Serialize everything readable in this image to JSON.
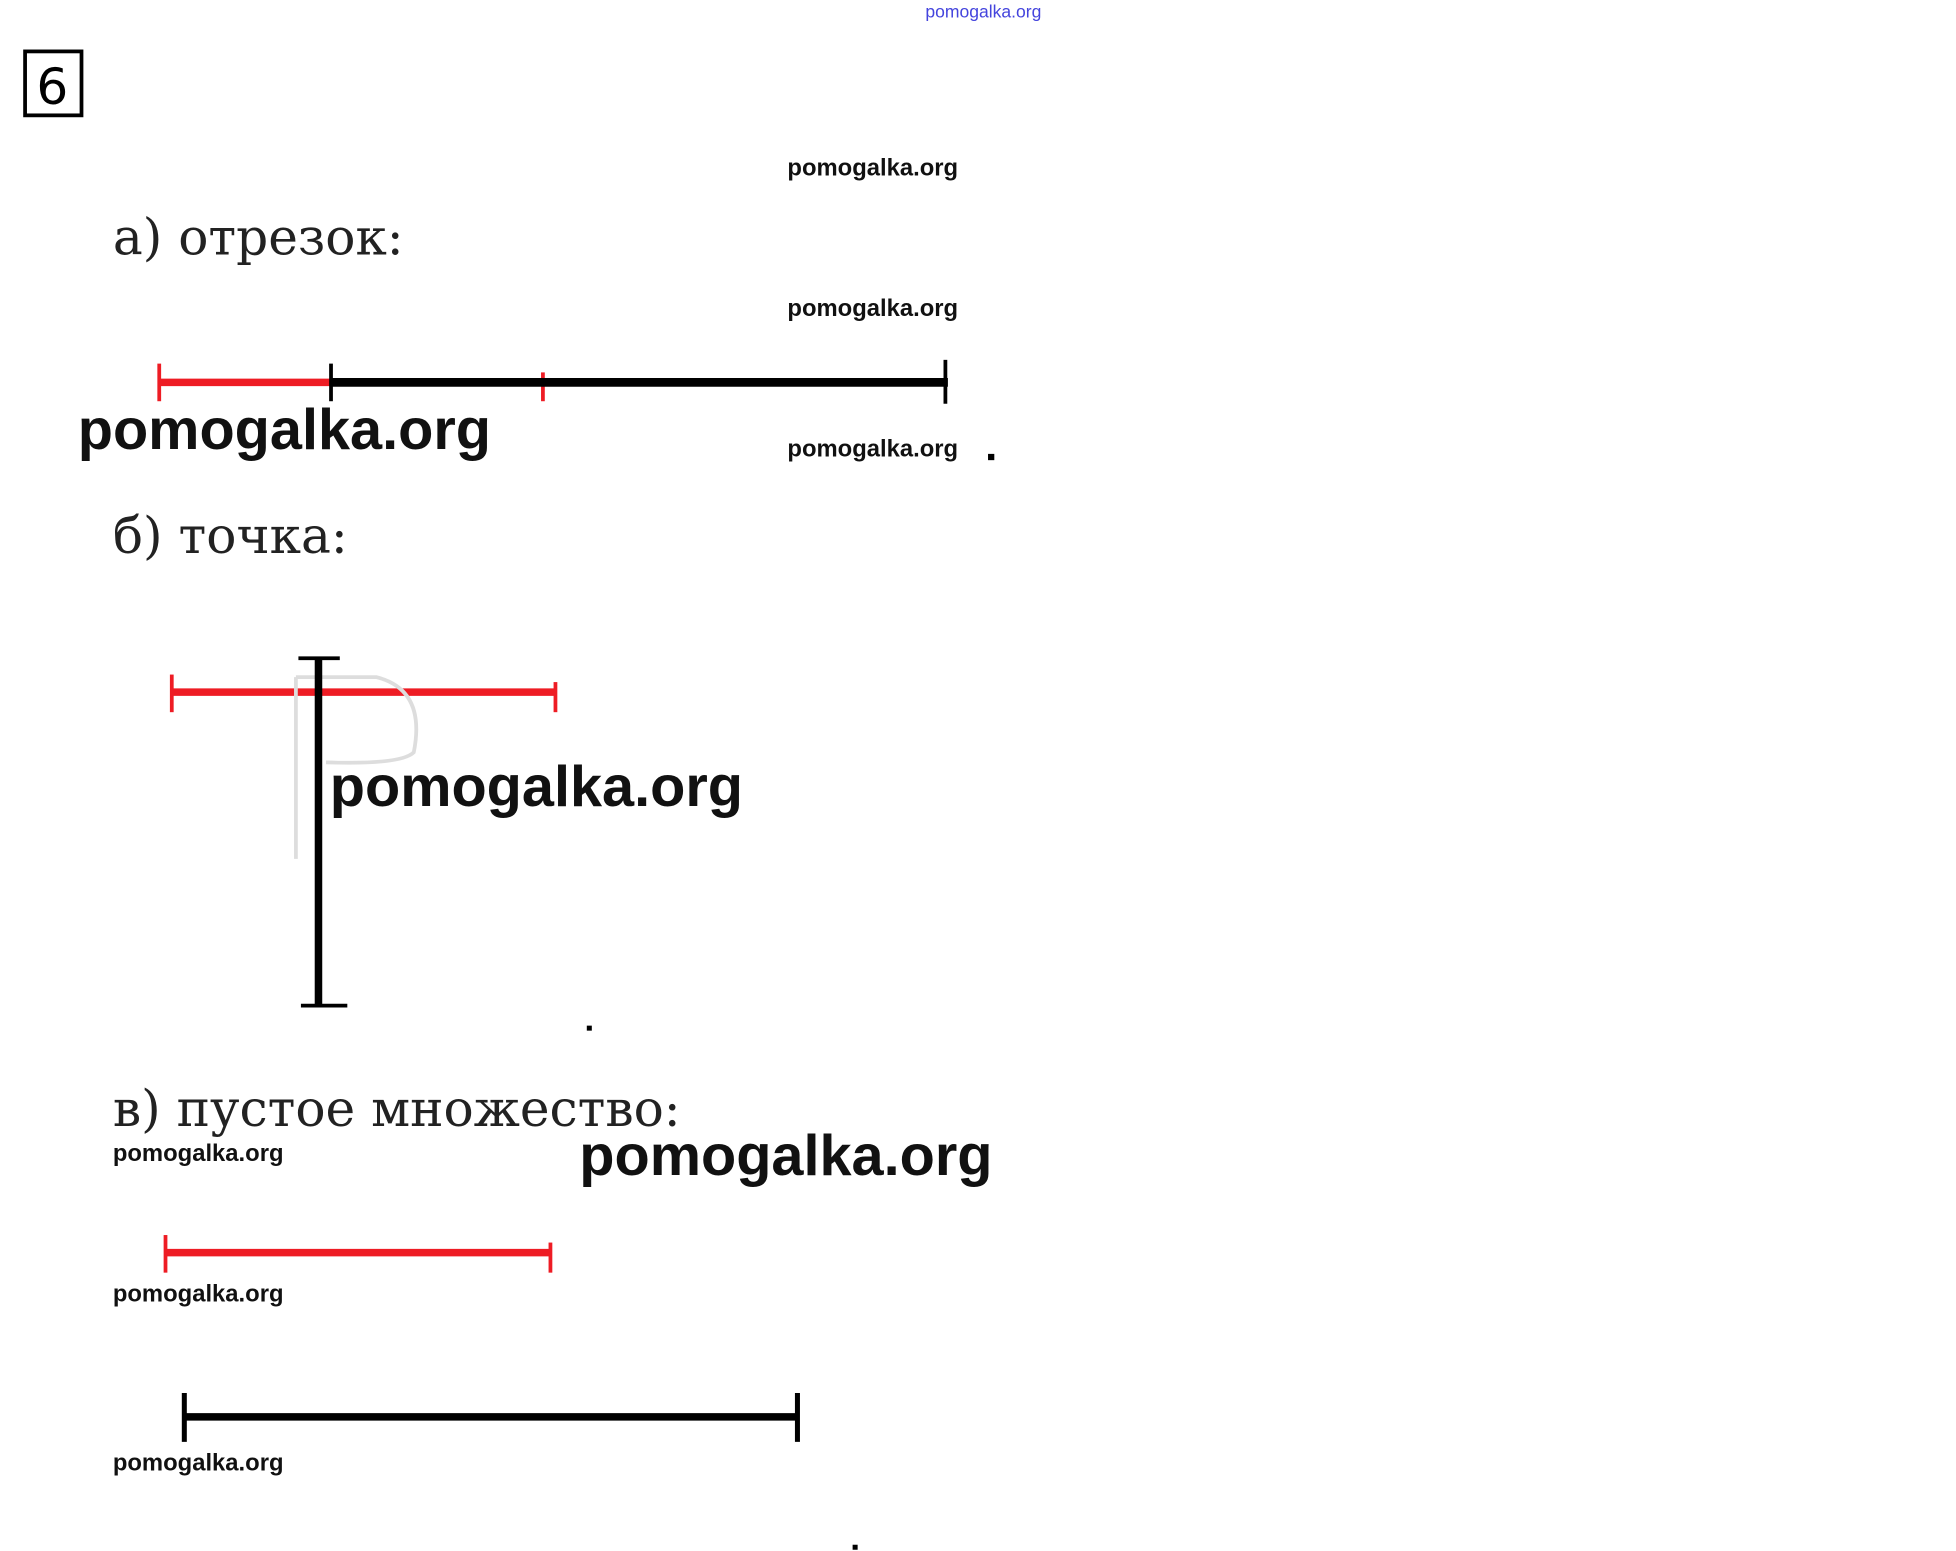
{
  "watermark": "pomogalka.org",
  "task_number": "6",
  "items": [
    {
      "label": "а) отрезок:"
    },
    {
      "label": "б) точка:"
    },
    {
      "label": "в) пустое множество:"
    }
  ],
  "colors": {
    "set_a": "#ee1c24",
    "set_b": "#000000",
    "watermark_top": "#4444dd"
  }
}
